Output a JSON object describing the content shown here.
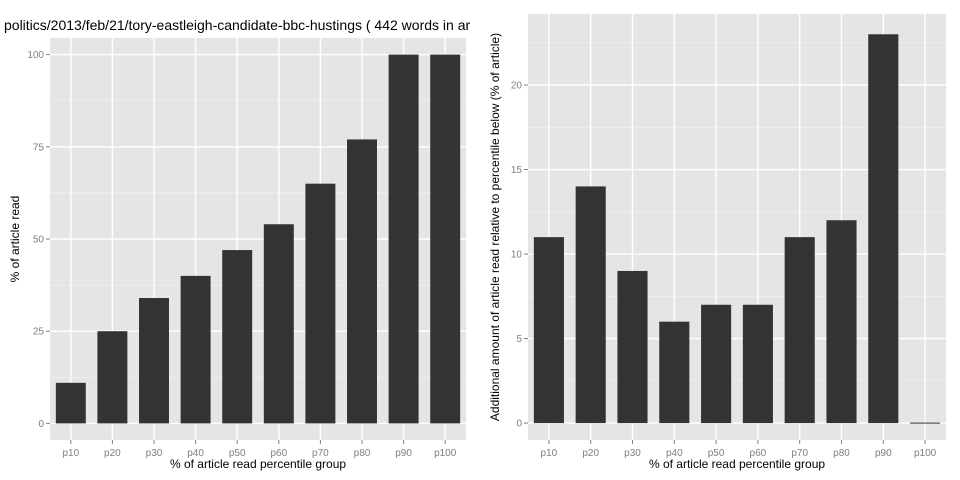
{
  "chart_data": [
    {
      "type": "bar",
      "title": "politics/2013/feb/21/tory-eastleigh-candidate-bbc-hustings ( 442 words in ar",
      "xlabel": "% of article read percentile group",
      "ylabel": "% of article read",
      "categories": [
        "p10",
        "p20",
        "p30",
        "p40",
        "p50",
        "p60",
        "p70",
        "p80",
        "p90",
        "p100"
      ],
      "values": [
        11,
        25,
        34,
        40,
        47,
        54,
        65,
        77,
        100,
        100
      ],
      "ylim": [
        -4.5,
        104.5
      ],
      "yticks": [
        0,
        25,
        50,
        75,
        100
      ],
      "bar_color": "#333333",
      "panel_color": "#e5e5e5",
      "grid": true
    },
    {
      "type": "bar",
      "title": "",
      "xlabel": "% of article read percentile group",
      "ylabel": "Additional amount of article read relative to percentile below (% of article)",
      "categories": [
        "p10",
        "p20",
        "p30",
        "p40",
        "p50",
        "p60",
        "p70",
        "p80",
        "p90",
        "p100"
      ],
      "values": [
        11,
        14,
        9,
        6,
        7,
        7,
        11,
        12,
        23,
        0
      ],
      "ylim": [
        -1.0,
        24.2
      ],
      "yticks": [
        0,
        5,
        10,
        15,
        20
      ],
      "bar_color": "#333333",
      "panel_color": "#e5e5e5",
      "grid": true
    }
  ]
}
